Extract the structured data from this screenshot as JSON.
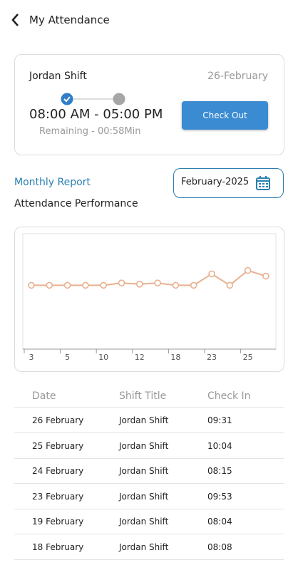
{
  "header": {
    "title": "My Attendance"
  },
  "shift": {
    "name": "Jordan Shift",
    "date": "26-February",
    "time": "08:00 AM - 05:00 PM",
    "remaining": "Remaining - 00:58Min",
    "button": "Check Out"
  },
  "report": {
    "title": "Monthly Report",
    "month": "February-2025",
    "subtitle": "Attendance Performance"
  },
  "chart_data": {
    "type": "line",
    "categories": [
      "3",
      null,
      "5",
      null,
      "10",
      null,
      "12",
      null,
      "18",
      null,
      "23",
      null,
      "25",
      null
    ],
    "values": [
      56,
      56,
      56,
      56,
      56,
      58,
      57,
      58,
      56,
      56,
      66,
      56,
      69,
      64
    ],
    "color": "#e8b08f",
    "ylim": [
      0,
      100
    ]
  },
  "table": {
    "columns": [
      "Date",
      "Shift Title",
      "Check In"
    ],
    "rows": [
      [
        "26 February",
        "Jordan Shift",
        "09:31"
      ],
      [
        "25 February",
        "Jordan Shift",
        "10:04"
      ],
      [
        "24 February",
        "Jordan Shift",
        "08:15"
      ],
      [
        "23 February",
        "Jordan Shift",
        "09:53"
      ],
      [
        "19 February",
        "Jordan Shift",
        "08:04"
      ],
      [
        "18 February",
        "Jordan Shift",
        "08:08"
      ]
    ]
  }
}
